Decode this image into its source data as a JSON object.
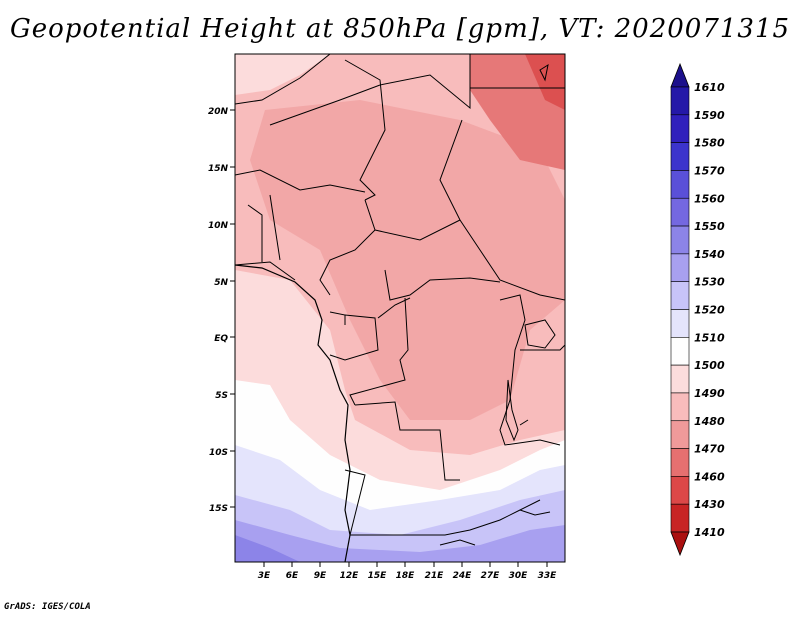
{
  "title": "Geopotential Height at 850hPa [gpm], VT: 2020071315",
  "map": {
    "y_axis_labels": [
      "20N",
      "15N",
      "10N",
      "5N",
      "EQ",
      "5S",
      "10S",
      "15S"
    ],
    "x_axis_labels": [
      "3E",
      "6E",
      "9E",
      "12E",
      "15E",
      "18E",
      "21E",
      "24E",
      "27E",
      "30E",
      "33E"
    ],
    "lon_range": [
      0,
      35
    ],
    "lat_range": [
      -20,
      24.5
    ]
  },
  "colorbar": {
    "levels": [
      "1610",
      "1590",
      "1580",
      "1570",
      "1560",
      "1550",
      "1540",
      "1530",
      "1520",
      "1510",
      "1500",
      "1490",
      "1480",
      "1470",
      "1460",
      "1430",
      "1410"
    ],
    "colors": [
      "#1c108c",
      "#2418a8",
      "#3020bc",
      "#3c34cc",
      "#5a50d8",
      "#7468e0",
      "#8c84e8",
      "#a8a0f0",
      "#c8c4f8",
      "#e4e4fc",
      "#fefefe",
      "#fcdcdc",
      "#f8bcbc",
      "#f09a9a",
      "#e67070",
      "#dc4848",
      "#c82424",
      "#aa1010"
    ]
  },
  "credit": "GrADS: IGES/COLA"
}
